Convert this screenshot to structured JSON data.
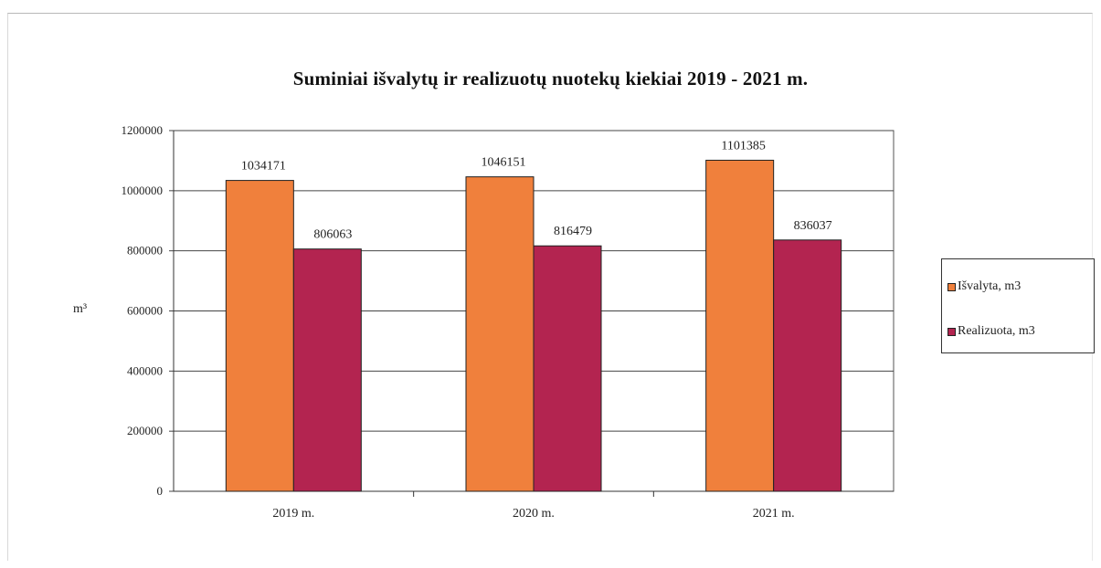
{
  "chart_data": {
    "type": "bar",
    "title": "Suminiai išvalytų ir realizuotų nuotekų kiekiai 2019 - 2021 m.",
    "ylabel": "m³",
    "categories": [
      "2019 m.",
      "2020 m.",
      "2021 m."
    ],
    "series": [
      {
        "name": "Išvalyta, m3",
        "values": [
          1034171,
          1046151,
          1101385
        ],
        "color": "#f0803c"
      },
      {
        "name": "Realizuota, m3",
        "values": [
          806063,
          816479,
          836037
        ],
        "color": "#b32450"
      }
    ],
    "ylim": [
      0,
      1200000
    ],
    "yticks": [
      "0",
      "200000",
      "400000",
      "600000",
      "800000",
      "1000000",
      "1200000"
    ],
    "grid": true,
    "legend": "right"
  }
}
